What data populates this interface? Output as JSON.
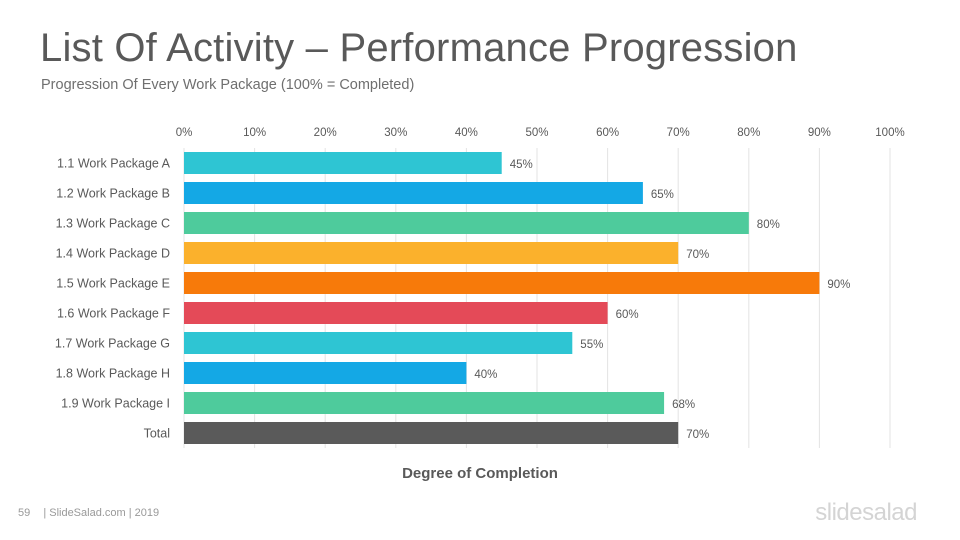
{
  "slide": {
    "title": "List Of Activity – Performance Progression",
    "subtitle": "Progression Of Every Work Package (100% = Completed)",
    "page_number": "59",
    "footer_text": "| SlideSalad.com | 2019",
    "logo_text": "slidesalad"
  },
  "chart_data": {
    "type": "bar",
    "orientation": "horizontal",
    "categories": [
      "1.1 Work Package A",
      "1.2 Work Package B",
      "1.3 Work Package C",
      "1.4 Work Package D",
      "1.5 Work Package E",
      "1.6 Work Package F",
      "1.7 Work Package G",
      "1.8 Work Package H",
      "1.9 Work Package I",
      "Total"
    ],
    "values": [
      45,
      65,
      80,
      70,
      90,
      60,
      55,
      40,
      68,
      70
    ],
    "value_labels": [
      "45%",
      "65%",
      "80%",
      "70%",
      "90%",
      "60%",
      "55%",
      "40%",
      "68%",
      "70%"
    ],
    "colors": [
      "#2ec5d3",
      "#14a8e5",
      "#4ecb9c",
      "#fbb12c",
      "#f77a0a",
      "#e44a58",
      "#2ec5d3",
      "#14a8e5",
      "#4ecb9c",
      "#5a5a5a"
    ],
    "xlabel": "Degree of Completion",
    "ylabel": "",
    "xlim": [
      0,
      100
    ],
    "x_ticks": [
      0,
      10,
      20,
      30,
      40,
      50,
      60,
      70,
      80,
      90,
      100
    ],
    "x_tick_labels": [
      "0%",
      "10%",
      "20%",
      "30%",
      "40%",
      "50%",
      "60%",
      "70%",
      "80%",
      "90%",
      "100%"
    ],
    "x_axis_position": "top",
    "grid": true,
    "legend": "none"
  }
}
